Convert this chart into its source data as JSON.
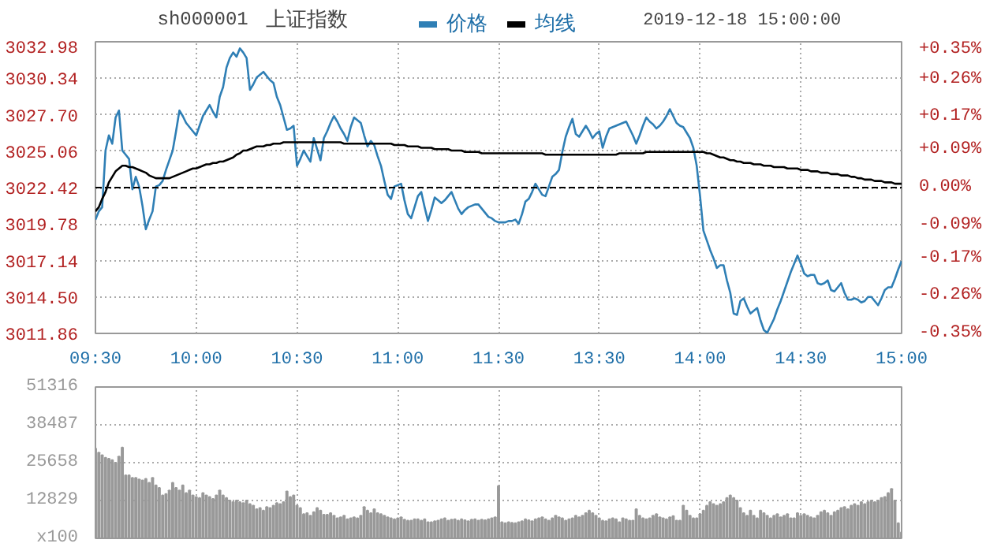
{
  "chart_data": [
    {
      "type": "line",
      "title": "上证指数",
      "subtitle": "sh000001",
      "annotations": [
        "2019-12-18 15:00:00"
      ],
      "categories": [
        "09:30",
        null,
        null,
        null,
        null,
        null,
        null,
        null,
        null,
        null,
        null,
        null,
        null,
        null,
        null,
        null,
        null,
        null,
        null,
        null,
        null,
        null,
        null,
        null,
        null,
        null,
        null,
        null,
        null,
        null,
        "10:00",
        null,
        null,
        null,
        null,
        null,
        null,
        null,
        null,
        null,
        null,
        null,
        null,
        null,
        null,
        null,
        null,
        null,
        null,
        null,
        null,
        null,
        null,
        null,
        null,
        null,
        null,
        null,
        null,
        null,
        "10:30",
        null,
        null,
        null,
        null,
        null,
        null,
        null,
        null,
        null,
        null,
        null,
        null,
        null,
        null,
        null,
        null,
        null,
        null,
        null,
        null,
        null,
        null,
        null,
        null,
        null,
        null,
        null,
        null,
        null,
        "11:00",
        null,
        null,
        null,
        null,
        null,
        null,
        null,
        null,
        null,
        null,
        null,
        null,
        null,
        null,
        null,
        null,
        null,
        null,
        null,
        null,
        null,
        null,
        null,
        null,
        null,
        null,
        null,
        null,
        null,
        "11:30",
        null,
        null,
        null,
        null,
        null,
        null,
        null,
        null,
        null,
        null,
        null,
        null,
        null,
        null,
        null,
        null,
        null,
        null,
        null,
        null,
        null,
        null,
        null,
        null,
        null,
        null,
        null,
        null,
        null,
        "13:30",
        null,
        null,
        null,
        null,
        null,
        null,
        null,
        null,
        null,
        null,
        null,
        null,
        null,
        null,
        null,
        null,
        null,
        null,
        null,
        null,
        null,
        null,
        null,
        null,
        null,
        null,
        null,
        null,
        null,
        "14:00",
        null,
        null,
        null,
        null,
        null,
        null,
        null,
        null,
        null,
        null,
        null,
        null,
        null,
        null,
        null,
        null,
        null,
        null,
        null,
        null,
        null,
        null,
        null,
        null,
        null,
        null,
        null,
        null,
        null,
        "14:30",
        null,
        null,
        null,
        null,
        null,
        null,
        null,
        null,
        null,
        null,
        null,
        null,
        null,
        null,
        null,
        null,
        null,
        null,
        null,
        null,
        null,
        null,
        null,
        null,
        null,
        null,
        null,
        null,
        null,
        "15:00"
      ],
      "ylim": [
        3011.86,
        3032.98
      ],
      "yticks": [
        {
          "value": 3011.86,
          "label": "3011.86"
        },
        {
          "value": 3014.5,
          "label": "3014.50"
        },
        {
          "value": 3017.14,
          "label": "3017.14"
        },
        {
          "value": 3019.78,
          "label": "3019.78"
        },
        {
          "value": 3022.42,
          "label": "3022.42"
        },
        {
          "value": 3025.06,
          "label": "3025.06"
        },
        {
          "value": 3027.7,
          "label": "3027.70"
        },
        {
          "value": 3030.34,
          "label": "3030.34"
        },
        {
          "value": 3032.98,
          "label": "3032.98"
        }
      ],
      "y2lim": [
        -0.35,
        0.35
      ],
      "y2ticks": [
        {
          "value": -0.35,
          "label": "-0.35%"
        },
        {
          "value": -0.26,
          "label": "-0.26%"
        },
        {
          "value": -0.17,
          "label": "-0.17%"
        },
        {
          "value": -0.09,
          "label": "-0.09%"
        },
        {
          "value": 0,
          "label": "0.00%"
        },
        {
          "value": 0.09,
          "label": "+0.09%"
        },
        {
          "value": 0.17,
          "label": "+0.17%"
        },
        {
          "value": 0.26,
          "label": "+0.26%"
        },
        {
          "value": 0.35,
          "label": "+0.35%"
        }
      ],
      "grid": true,
      "legend": "top",
      "line_style": "solid",
      "ref_lines": [
        {
          "axis": "y",
          "value": 3022.42,
          "color": "#000000",
          "line_style": "dashed"
        }
      ],
      "series": [
        {
          "name": "价格",
          "color": "#2f7fb5",
          "values": [
            3020.1,
            3020.7,
            3021.0,
            3025.1,
            3026.2,
            3025.6,
            3027.5,
            3028.0,
            3025.1,
            3024.8,
            3024.5,
            3022.3,
            3023.2,
            3022.5,
            3021.1,
            3019.4,
            3020.1,
            3020.7,
            3022.5,
            3022.6,
            3022.9,
            3023.7,
            3024.4,
            3025.1,
            3026.5,
            3028.0,
            3027.6,
            3027.1,
            3026.8,
            3026.5,
            3026.2,
            3026.9,
            3027.6,
            3028.0,
            3028.4,
            3027.9,
            3027.5,
            3029.0,
            3029.7,
            3031.1,
            3031.8,
            3032.2,
            3031.9,
            3032.5,
            3032.2,
            3031.8,
            3029.5,
            3029.9,
            3030.4,
            3030.6,
            3030.8,
            3030.5,
            3030.2,
            3030.0,
            3029.0,
            3028.4,
            3027.5,
            3026.6,
            3026.7,
            3026.9,
            3024.0,
            3024.5,
            3025.1,
            3024.7,
            3024.3,
            3026.0,
            3025.2,
            3024.4,
            3026.0,
            3026.5,
            3027.1,
            3027.6,
            3027.2,
            3026.7,
            3026.3,
            3025.8,
            3026.8,
            3027.5,
            3027.3,
            3027.1,
            3026.2,
            3025.4,
            3025.8,
            3025.5,
            3024.7,
            3024.0,
            3022.9,
            3021.9,
            3021.6,
            3022.5,
            3022.6,
            3022.7,
            3021.5,
            3020.5,
            3020.2,
            3021.0,
            3021.8,
            3022.1,
            3021.0,
            3020.0,
            3020.8,
            3021.7,
            3021.5,
            3021.3,
            3021.5,
            3021.8,
            3022.1,
            3021.5,
            3020.9,
            3020.5,
            3020.8,
            3021.0,
            3021.1,
            3021.2,
            3021.2,
            3020.9,
            3020.6,
            3020.3,
            3020.2,
            3020.0,
            3019.9,
            3019.9,
            3019.9,
            3020.0,
            3020.0,
            3020.1,
            3019.8,
            3020.5,
            3021.4,
            3021.6,
            3022.1,
            3022.7,
            3022.3,
            3021.9,
            3021.8,
            3022.5,
            3023.2,
            3023.4,
            3023.7,
            3025.0,
            3026.1,
            3026.8,
            3027.4,
            3026.3,
            3026.1,
            3026.5,
            3026.9,
            3026.5,
            3026.0,
            3026.3,
            3026.5,
            3025.3,
            3026.1,
            3026.7,
            3026.8,
            3026.9,
            3027.0,
            3027.1,
            3027.2,
            3026.7,
            3026.2,
            3025.6,
            3026.2,
            3026.9,
            3027.5,
            3027.2,
            3027.0,
            3026.7,
            3026.9,
            3027.2,
            3027.6,
            3028.1,
            3027.6,
            3027.1,
            3026.9,
            3026.8,
            3026.4,
            3026.0,
            3025.3,
            3024.0,
            3021.8,
            3019.3,
            3018.6,
            3017.9,
            3017.3,
            3016.6,
            3016.8,
            3016.8,
            3015.7,
            3014.8,
            3013.3,
            3013.2,
            3014.2,
            3014.4,
            3013.8,
            3013.3,
            3013.5,
            3013.7,
            3012.8,
            3012.1,
            3011.9,
            3012.4,
            3012.9,
            3013.6,
            3014.2,
            3014.9,
            3015.6,
            3016.3,
            3016.9,
            3017.5,
            3016.9,
            3016.2,
            3016.0,
            3016.1,
            3016.1,
            3015.5,
            3015.4,
            3015.5,
            3015.7,
            3015.0,
            3014.9,
            3015.2,
            3015.5,
            3014.8,
            3014.3,
            3014.3,
            3014.4,
            3014.3,
            3014.1,
            3014.2,
            3014.5,
            3014.5,
            3014.2,
            3013.9,
            3014.4,
            3015.0,
            3015.2,
            3015.2,
            3015.8,
            3016.5,
            3017.1
          ]
        },
        {
          "name": "均线",
          "color": "#000000",
          "values": [
            3020.7,
            3021.0,
            3021.6,
            3022.1,
            3022.8,
            3023.2,
            3023.6,
            3023.8,
            3024.0,
            3024.0,
            3023.9,
            3023.9,
            3023.8,
            3023.7,
            3023.6,
            3023.5,
            3023.3,
            3023.2,
            3023.1,
            3023.1,
            3023.1,
            3023.1,
            3023.1,
            3023.2,
            3023.3,
            3023.4,
            3023.5,
            3023.6,
            3023.7,
            3023.8,
            3023.8,
            3023.9,
            3024.0,
            3024.1,
            3024.1,
            3024.2,
            3024.2,
            3024.3,
            3024.3,
            3024.4,
            3024.5,
            3024.6,
            3024.8,
            3024.9,
            3025.1,
            3025.1,
            3025.2,
            3025.3,
            3025.4,
            3025.4,
            3025.4,
            3025.5,
            3025.5,
            3025.6,
            3025.6,
            3025.6,
            3025.7,
            3025.7,
            3025.7,
            3025.7,
            3025.7,
            3025.7,
            3025.7,
            3025.7,
            3025.7,
            3025.7,
            3025.7,
            3025.7,
            3025.7,
            3025.7,
            3025.7,
            3025.7,
            3025.7,
            3025.7,
            3025.6,
            3025.6,
            3025.6,
            3025.6,
            3025.6,
            3025.6,
            3025.6,
            3025.6,
            3025.6,
            3025.6,
            3025.6,
            3025.6,
            3025.6,
            3025.6,
            3025.6,
            3025.5,
            3025.5,
            3025.5,
            3025.5,
            3025.4,
            3025.4,
            3025.4,
            3025.4,
            3025.3,
            3025.3,
            3025.3,
            3025.3,
            3025.2,
            3025.2,
            3025.2,
            3025.2,
            3025.2,
            3025.1,
            3025.1,
            3025.1,
            3025.1,
            3025.0,
            3025.0,
            3025.0,
            3025.0,
            3025.0,
            3024.9,
            3024.9,
            3024.9,
            3024.9,
            3024.9,
            3024.9,
            3024.9,
            3024.9,
            3024.9,
            3024.9,
            3024.9,
            3024.9,
            3024.9,
            3024.9,
            3024.9,
            3024.9,
            3024.9,
            3024.9,
            3024.9,
            3024.8,
            3024.8,
            3024.8,
            3024.8,
            3024.8,
            3024.8,
            3024.8,
            3024.8,
            3024.8,
            3024.8,
            3024.8,
            3024.8,
            3024.8,
            3024.8,
            3024.8,
            3024.8,
            3024.8,
            3024.8,
            3024.8,
            3024.8,
            3024.8,
            3024.8,
            3024.9,
            3024.9,
            3024.9,
            3024.9,
            3024.9,
            3024.9,
            3024.9,
            3024.9,
            3025.0,
            3025.0,
            3025.0,
            3025.0,
            3025.0,
            3025.0,
            3025.0,
            3025.0,
            3025.0,
            3025.0,
            3025.0,
            3025.0,
            3025.0,
            3025.0,
            3025.0,
            3025.0,
            3025.0,
            3025.0,
            3024.9,
            3024.9,
            3024.8,
            3024.7,
            3024.6,
            3024.6,
            3024.5,
            3024.4,
            3024.4,
            3024.3,
            3024.3,
            3024.2,
            3024.2,
            3024.2,
            3024.1,
            3024.1,
            3024.1,
            3024.0,
            3024.0,
            3024.0,
            3023.9,
            3023.9,
            3023.9,
            3023.9,
            3023.8,
            3023.8,
            3023.8,
            3023.8,
            3023.7,
            3023.7,
            3023.7,
            3023.6,
            3023.6,
            3023.6,
            3023.5,
            3023.5,
            3023.5,
            3023.4,
            3023.4,
            3023.4,
            3023.3,
            3023.3,
            3023.3,
            3023.2,
            3023.2,
            3023.1,
            3023.1,
            3023.0,
            3023.0,
            3023.0,
            3022.9,
            3022.9,
            3022.9,
            3022.8,
            3022.8,
            3022.8,
            3022.7,
            3022.7,
            3022.7
          ]
        }
      ]
    },
    {
      "type": "bar",
      "grid": true,
      "color": "#999999",
      "categories": [
        null,
        null,
        null,
        null,
        null,
        null,
        null,
        null,
        null,
        null,
        null,
        null,
        null,
        null,
        null,
        null,
        null,
        null,
        null,
        null,
        null,
        null,
        null,
        null,
        null,
        null,
        null,
        null,
        null,
        null,
        null,
        null,
        null,
        null,
        null,
        null,
        null,
        null,
        null,
        null,
        null,
        null,
        null,
        null,
        null,
        null,
        null,
        null,
        null,
        null,
        null,
        null,
        null,
        null,
        null,
        null,
        null,
        null,
        null,
        null,
        null,
        null,
        null,
        null,
        null,
        null,
        null,
        null,
        null,
        null,
        null,
        null,
        null,
        null,
        null,
        null,
        null,
        null,
        null,
        null,
        null,
        null,
        null,
        null,
        null,
        null,
        null,
        null,
        null,
        null,
        null,
        null,
        null,
        null,
        null,
        null,
        null,
        null,
        null,
        null,
        null,
        null,
        null,
        null,
        null,
        null,
        null,
        null,
        null,
        null,
        null,
        null,
        null,
        null,
        null,
        null,
        null,
        null,
        null,
        null,
        null,
        null,
        null,
        null,
        null,
        null,
        null,
        null,
        null,
        null,
        null,
        null,
        null,
        null,
        null,
        null,
        null,
        null,
        null,
        null,
        null,
        null,
        null,
        null,
        null,
        null,
        null,
        null,
        null,
        null,
        null,
        null,
        null,
        null,
        null,
        null,
        null,
        null,
        null,
        null,
        null,
        null,
        null,
        null,
        null,
        null,
        null,
        null,
        null,
        null,
        null,
        null,
        null,
        null,
        null,
        null,
        null,
        null,
        null,
        null,
        null,
        null,
        null,
        null,
        null,
        null,
        null,
        null,
        null,
        null,
        null,
        null,
        null,
        null,
        null,
        null,
        null,
        null,
        null,
        null,
        null,
        null,
        null,
        null,
        null,
        null,
        null,
        null,
        null,
        null,
        null,
        null,
        null,
        null,
        null,
        null,
        null,
        null,
        null,
        null,
        null,
        null,
        null,
        null,
        null,
        null,
        null,
        null,
        null,
        null,
        null,
        null,
        null,
        null,
        null,
        null,
        null,
        null,
        null,
        null,
        null
      ],
      "ylim": [
        0,
        51316
      ],
      "yticks": [
        {
          "value": 0,
          "label": "x100"
        },
        12829,
        25658,
        38487,
        51316
      ],
      "values": [
        30440,
        29070,
        28220,
        27360,
        27020,
        26510,
        25650,
        27700,
        30780,
        21380,
        21380,
        20520,
        20520,
        20010,
        19670,
        20180,
        18810,
        20520,
        17960,
        17100,
        14540,
        15050,
        16250,
        18810,
        17100,
        16250,
        17960,
        15390,
        16250,
        14540,
        14020,
        13680,
        15390,
        14540,
        14020,
        13340,
        14540,
        16250,
        14540,
        13680,
        12830,
        12310,
        12830,
        12310,
        11970,
        12830,
        11630,
        11120,
        9920,
        10260,
        9410,
        10600,
        10260,
        11120,
        11970,
        11630,
        12310,
        15900,
        14020,
        14540,
        11120,
        10260,
        8210,
        8550,
        7700,
        8890,
        10260,
        9410,
        8040,
        8040,
        8550,
        7700,
        6840,
        7180,
        7700,
        6500,
        6840,
        7180,
        6840,
        7700,
        10600,
        9410,
        8550,
        9920,
        8550,
        8210,
        7700,
        7180,
        6840,
        6500,
        6840,
        7180,
        6330,
        5990,
        5990,
        6500,
        6500,
        5990,
        6500,
        5470,
        5470,
        5810,
        5990,
        6500,
        6840,
        5990,
        6330,
        6500,
        5990,
        6500,
        6160,
        5810,
        6330,
        6500,
        5990,
        6330,
        6160,
        6500,
        6840,
        7180,
        17780,
        5470,
        5130,
        5470,
        5300,
        5130,
        5470,
        5810,
        6500,
        6160,
        5810,
        6500,
        6840,
        7180,
        6500,
        5990,
        6840,
        7700,
        7180,
        6840,
        5990,
        6500,
        6840,
        7700,
        7180,
        7700,
        8550,
        9410,
        8550,
        7700,
        6840,
        5990,
        5810,
        6500,
        6840,
        6500,
        5470,
        6840,
        6500,
        5990,
        5990,
        9920,
        7700,
        6840,
        6500,
        6840,
        7700,
        8210,
        7180,
        6840,
        6500,
        7180,
        7520,
        5990,
        5990,
        11120,
        9410,
        7700,
        6840,
        6840,
        8210,
        9410,
        11120,
        12310,
        11630,
        11120,
        11630,
        12310,
        13680,
        14540,
        13680,
        12830,
        10260,
        8550,
        7700,
        9410,
        7700,
        6840,
        9410,
        8550,
        7700,
        6840,
        7700,
        8210,
        7180,
        7700,
        8210,
        6840,
        6840,
        8550,
        7700,
        8210,
        7700,
        7180,
        6840,
        7700,
        8890,
        9410,
        8550,
        7700,
        8890,
        9410,
        10260,
        10600,
        9920,
        11120,
        11630,
        11120,
        12310,
        11630,
        12310,
        12830,
        12310,
        12830,
        13680,
        14020,
        15390,
        16760,
        12830,
        5130,
        2050
      ]
    }
  ]
}
